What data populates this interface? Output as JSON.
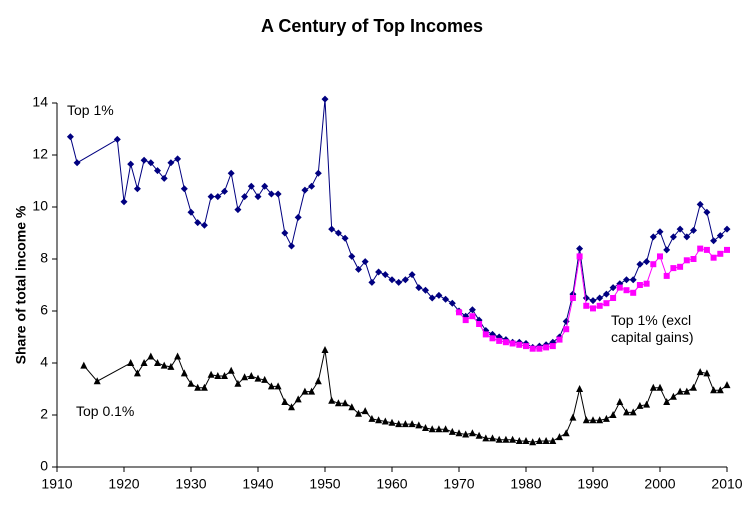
{
  "chart_data": {
    "type": "line",
    "title": "A Century of Top Incomes",
    "y_label": "Share of total income %",
    "xlim": [
      1910,
      2010
    ],
    "xticks": [
      1910,
      1920,
      1930,
      1940,
      1950,
      1960,
      1970,
      1980,
      1990,
      2000,
      2010
    ],
    "ylim": [
      0,
      14
    ],
    "yticks": [
      0,
      2,
      4,
      6,
      8,
      10,
      12,
      14
    ],
    "grid": false,
    "series": [
      {
        "name": "Top 1%",
        "color": "#000080",
        "marker": "diamond",
        "x": [
          1912,
          1913,
          1919,
          1920,
          1921,
          1922,
          1923,
          1924,
          1925,
          1926,
          1927,
          1928,
          1929,
          1930,
          1931,
          1932,
          1933,
          1934,
          1935,
          1936,
          1937,
          1938,
          1939,
          1940,
          1941,
          1942,
          1943,
          1944,
          1945,
          1946,
          1947,
          1948,
          1949,
          1950,
          1951,
          1952,
          1953,
          1954,
          1955,
          1956,
          1957,
          1958,
          1959,
          1960,
          1961,
          1962,
          1963,
          1964,
          1965,
          1966,
          1967,
          1968,
          1969,
          1970,
          1971,
          1972,
          1973,
          1974,
          1975,
          1976,
          1977,
          1978,
          1979,
          1980,
          1981,
          1982,
          1983,
          1984,
          1985,
          1986,
          1987,
          1988,
          1989,
          1990,
          1991,
          1992,
          1993,
          1994,
          1995,
          1996,
          1997,
          1998,
          1999,
          2000,
          2001,
          2002,
          2003,
          2004,
          2005,
          2006,
          2007,
          2008,
          2009,
          2010
        ],
        "values": [
          12.7,
          11.7,
          12.6,
          10.2,
          11.65,
          10.7,
          11.8,
          11.7,
          11.4,
          11.1,
          11.7,
          11.85,
          10.7,
          9.8,
          9.4,
          9.3,
          10.4,
          10.4,
          10.6,
          11.3,
          9.9,
          10.4,
          10.8,
          10.4,
          10.8,
          10.5,
          10.5,
          9.0,
          8.5,
          9.6,
          10.65,
          10.8,
          11.3,
          14.15,
          9.15,
          9.0,
          8.8,
          8.1,
          7.6,
          7.9,
          7.1,
          7.5,
          7.4,
          7.2,
          7.1,
          7.2,
          7.4,
          6.9,
          6.8,
          6.5,
          6.6,
          6.45,
          6.3,
          6.0,
          5.8,
          6.05,
          5.65,
          5.25,
          5.1,
          5.0,
          4.9,
          4.8,
          4.8,
          4.75,
          4.6,
          4.65,
          4.7,
          4.8,
          5.0,
          5.6,
          6.65,
          8.4,
          6.5,
          6.4,
          6.5,
          6.65,
          6.9,
          7.05,
          7.2,
          7.2,
          7.8,
          7.9,
          8.85,
          9.05,
          8.35,
          8.85,
          9.15,
          8.85,
          9.1,
          10.1,
          9.8,
          8.7,
          8.9,
          9.15
        ]
      },
      {
        "name": "Top 1% (excl capital gains)",
        "color": "#ff00ff",
        "marker": "square",
        "x": [
          1970,
          1971,
          1972,
          1973,
          1974,
          1975,
          1976,
          1977,
          1978,
          1979,
          1980,
          1981,
          1982,
          1983,
          1984,
          1985,
          1986,
          1987,
          1988,
          1989,
          1990,
          1991,
          1992,
          1993,
          1994,
          1995,
          1996,
          1997,
          1998,
          1999,
          2000,
          2001,
          2002,
          2003,
          2004,
          2005,
          2006,
          2007,
          2008,
          2009,
          2010
        ],
        "values": [
          5.95,
          5.65,
          5.8,
          5.5,
          5.1,
          4.95,
          4.85,
          4.8,
          4.75,
          4.7,
          4.65,
          4.55,
          4.55,
          4.6,
          4.65,
          4.9,
          5.3,
          6.5,
          8.1,
          6.2,
          6.1,
          6.2,
          6.3,
          6.5,
          6.9,
          6.8,
          6.7,
          7.0,
          7.05,
          7.8,
          8.1,
          7.35,
          7.65,
          7.7,
          7.95,
          8.0,
          8.4,
          8.35,
          8.05,
          8.2,
          8.35
        ]
      },
      {
        "name": "Top 0.1%",
        "color": "#000000",
        "marker": "triangle",
        "x": [
          1914,
          1916,
          1921,
          1922,
          1923,
          1924,
          1925,
          1926,
          1927,
          1928,
          1929,
          1930,
          1931,
          1932,
          1933,
          1934,
          1935,
          1936,
          1937,
          1938,
          1939,
          1940,
          1941,
          1942,
          1943,
          1944,
          1945,
          1946,
          1947,
          1948,
          1949,
          1950,
          1951,
          1952,
          1953,
          1954,
          1955,
          1956,
          1957,
          1958,
          1959,
          1960,
          1961,
          1962,
          1963,
          1964,
          1965,
          1966,
          1967,
          1968,
          1969,
          1970,
          1971,
          1972,
          1973,
          1974,
          1975,
          1976,
          1977,
          1978,
          1979,
          1980,
          1981,
          1982,
          1983,
          1984,
          1985,
          1986,
          1987,
          1988,
          1989,
          1990,
          1991,
          1992,
          1993,
          1994,
          1995,
          1996,
          1997,
          1998,
          1999,
          2000,
          2001,
          2002,
          2003,
          2004,
          2005,
          2006,
          2007,
          2008,
          2009,
          2010
        ],
        "values": [
          3.9,
          3.3,
          4.0,
          3.6,
          4.0,
          4.25,
          4.0,
          3.9,
          3.85,
          4.25,
          3.6,
          3.2,
          3.05,
          3.05,
          3.55,
          3.5,
          3.5,
          3.7,
          3.2,
          3.45,
          3.5,
          3.4,
          3.35,
          3.1,
          3.1,
          2.5,
          2.3,
          2.6,
          2.9,
          2.9,
          3.3,
          4.5,
          2.55,
          2.45,
          2.45,
          2.3,
          2.05,
          2.15,
          1.85,
          1.8,
          1.75,
          1.7,
          1.65,
          1.65,
          1.65,
          1.6,
          1.5,
          1.45,
          1.45,
          1.45,
          1.35,
          1.3,
          1.25,
          1.3,
          1.2,
          1.1,
          1.1,
          1.05,
          1.05,
          1.05,
          1.0,
          1.0,
          0.95,
          1.0,
          1.0,
          1.0,
          1.15,
          1.3,
          1.9,
          3.0,
          1.8,
          1.8,
          1.8,
          1.85,
          2.0,
          2.5,
          2.1,
          2.1,
          2.35,
          2.4,
          3.05,
          3.05,
          2.5,
          2.7,
          2.9,
          2.9,
          3.05,
          3.65,
          3.6,
          2.95,
          2.95,
          3.15
        ]
      }
    ]
  }
}
